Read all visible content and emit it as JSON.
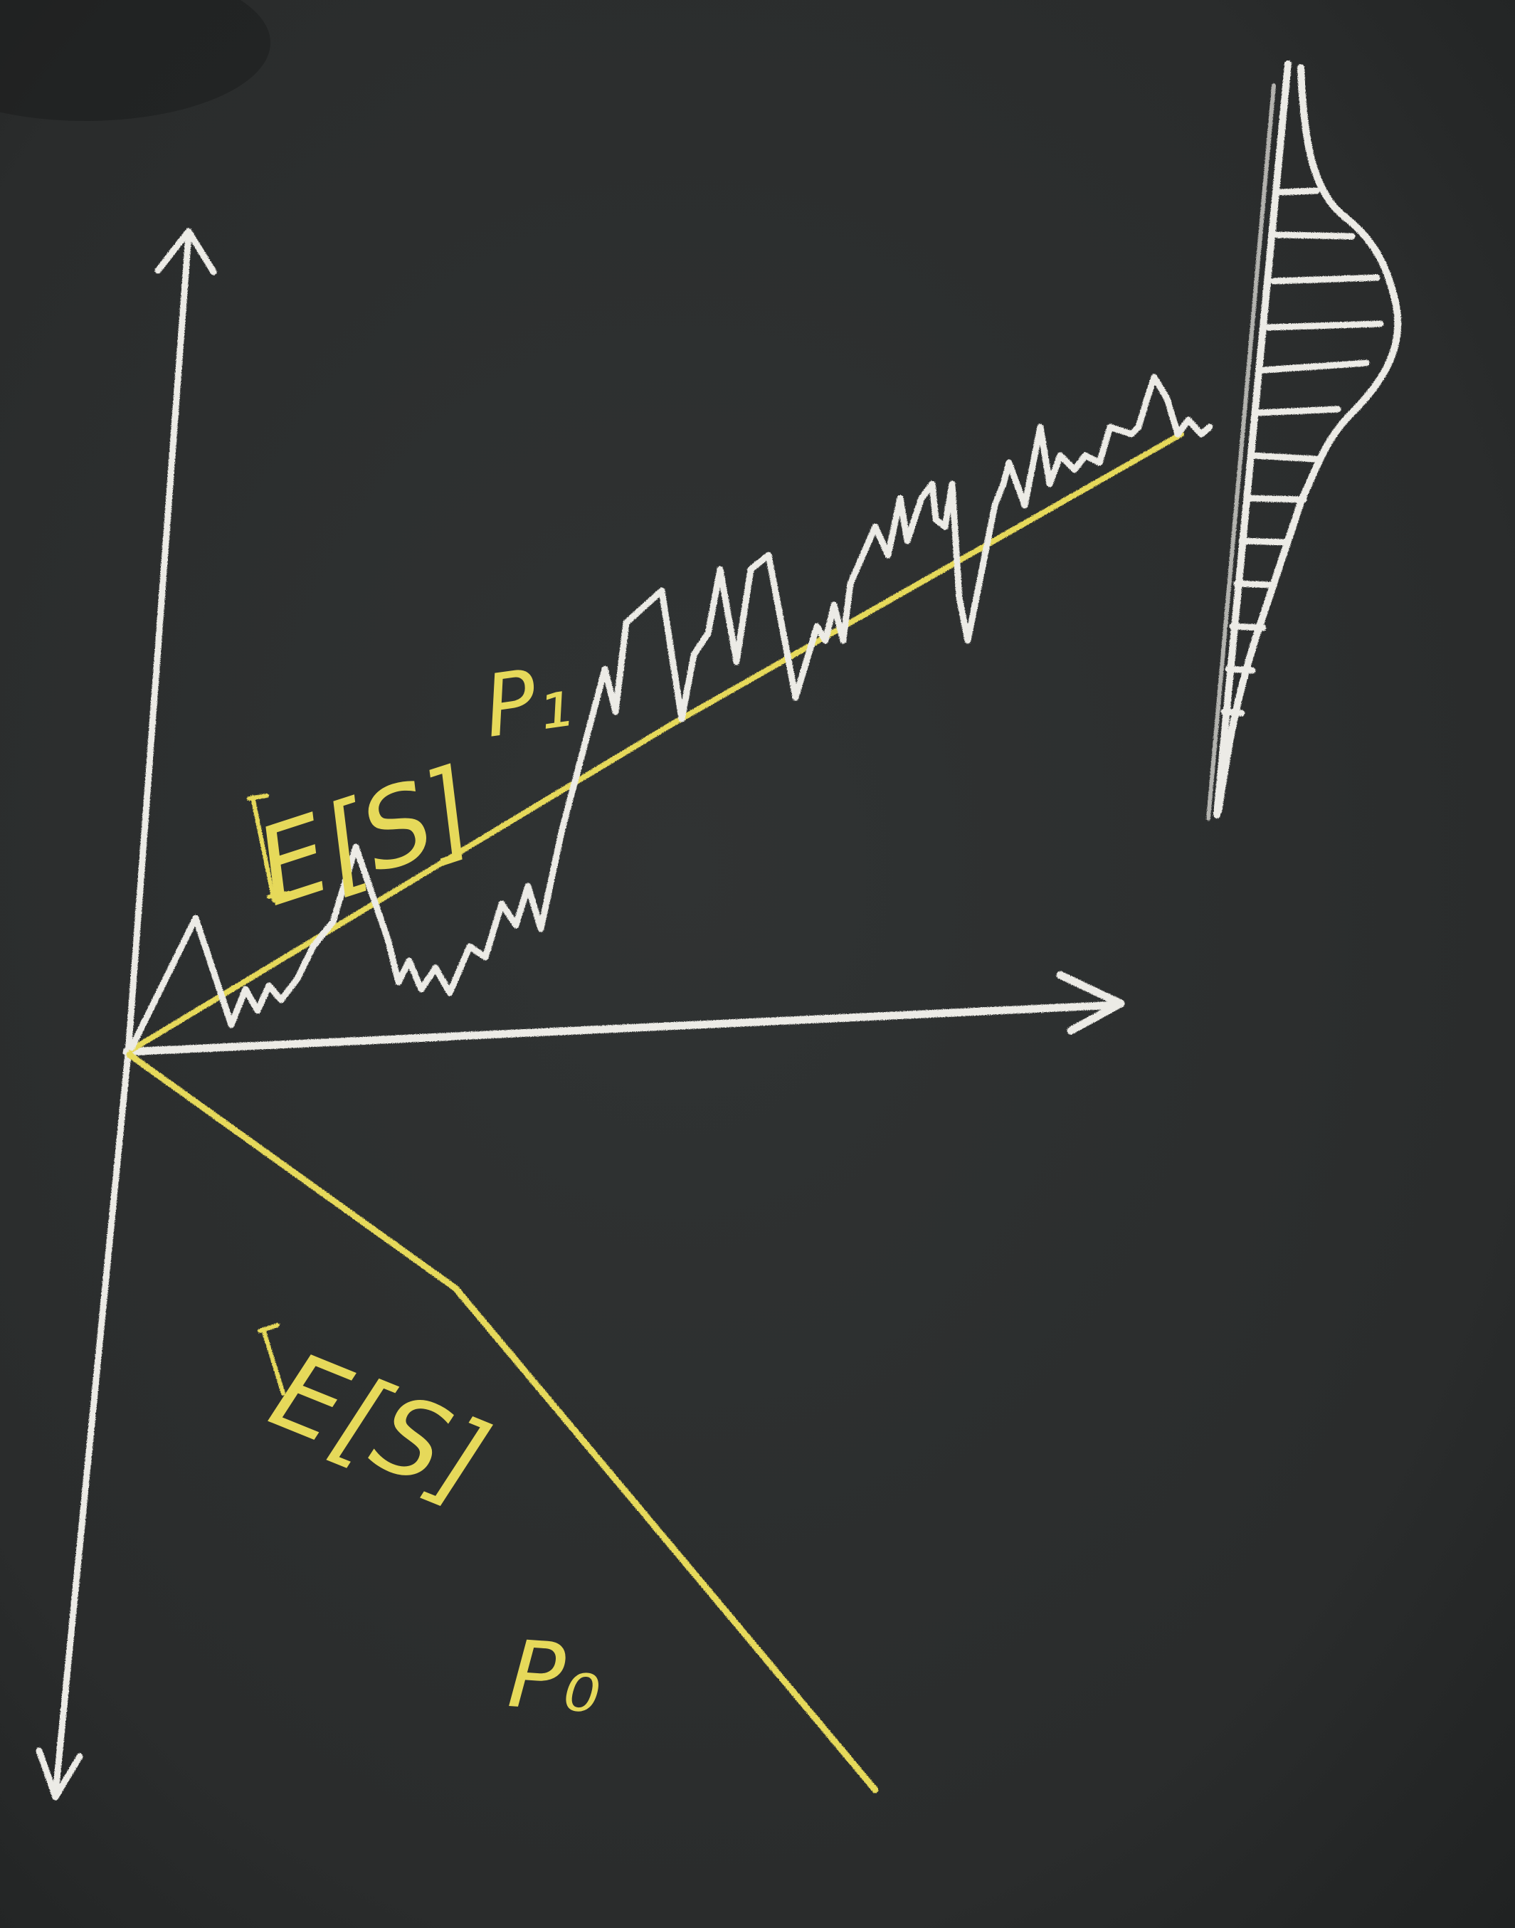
{
  "colors": {
    "board": "#2b2d2d",
    "chalk_white": "#ecebe6",
    "chalk_yellow": "#e6d95a"
  },
  "labels": {
    "expected_upper": "E[S]",
    "p1": "P₁",
    "expected_lower": "E[S]",
    "p0": "P₀"
  }
}
